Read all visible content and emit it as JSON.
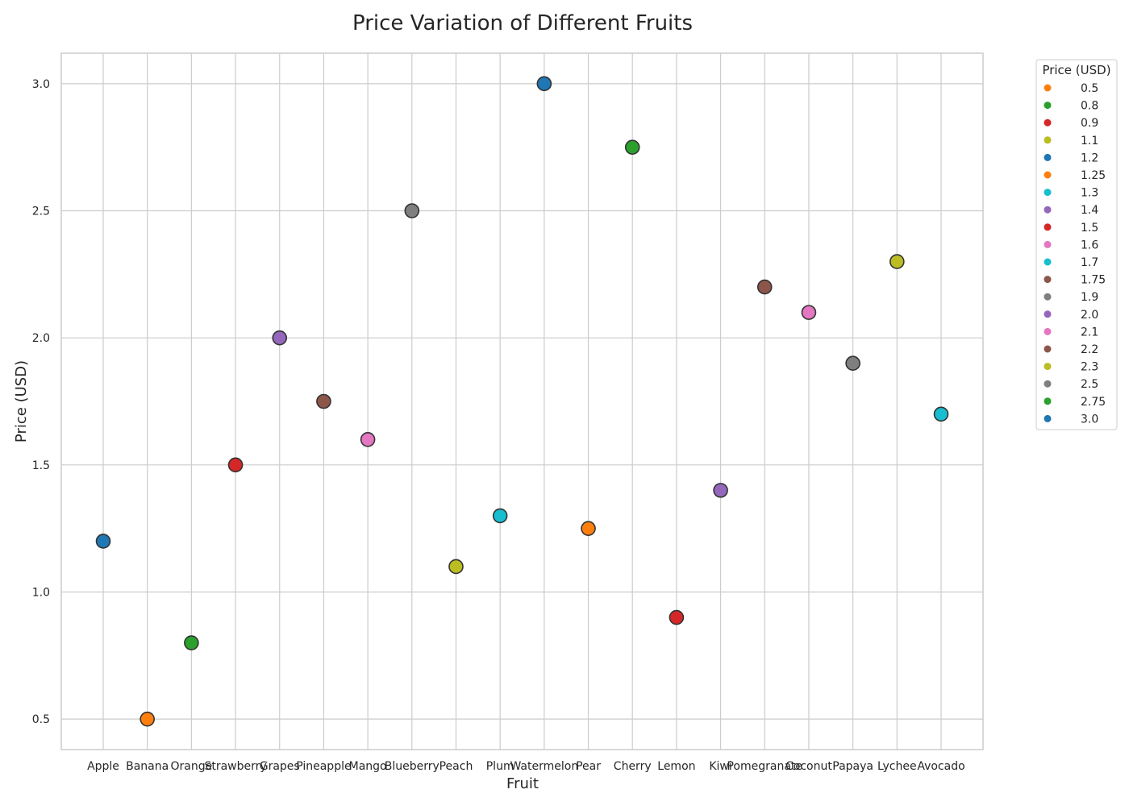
{
  "chart_data": {
    "type": "scatter",
    "title": "Price Variation of Different Fruits",
    "xlabel": "Fruit",
    "ylabel": "Price (USD)",
    "categories": [
      "Apple",
      "Banana",
      "Orange",
      "Strawberry",
      "Grapes",
      "Pineapple",
      "Mango",
      "Blueberry",
      "Peach",
      "Plum",
      "Watermelon",
      "Pear",
      "Cherry",
      "Lemon",
      "Kiwi",
      "Pomegranate",
      "Coconut",
      "Papaya",
      "Lychee",
      "Avocado"
    ],
    "values": [
      1.2,
      0.5,
      0.8,
      1.5,
      2.0,
      1.75,
      1.6,
      2.5,
      1.1,
      1.3,
      3.0,
      1.25,
      2.75,
      0.9,
      1.4,
      2.2,
      2.1,
      1.9,
      2.3,
      1.7
    ],
    "y_ticks": [
      0.5,
      1.0,
      1.5,
      2.0,
      2.5,
      3.0
    ],
    "y_tick_labels": [
      "0.5",
      "1.0",
      "1.5",
      "2.0",
      "2.5",
      "3.0"
    ],
    "ylim": [
      0.38,
      3.12
    ],
    "grid": true,
    "legend": {
      "title": "Price (USD)",
      "placement": "outside-right",
      "entries": [
        {
          "label": "0.5",
          "color": "#ff7f0e"
        },
        {
          "label": "0.8",
          "color": "#2ca02c"
        },
        {
          "label": "0.9",
          "color": "#d62728"
        },
        {
          "label": "1.1",
          "color": "#bcbd22"
        },
        {
          "label": "1.2",
          "color": "#1f77b4"
        },
        {
          "label": "1.25",
          "color": "#ff7f0e"
        },
        {
          "label": "1.3",
          "color": "#17becf"
        },
        {
          "label": "1.4",
          "color": "#9467bd"
        },
        {
          "label": "1.5",
          "color": "#d62728"
        },
        {
          "label": "1.6",
          "color": "#e377c2"
        },
        {
          "label": "1.7",
          "color": "#17becf"
        },
        {
          "label": "1.75",
          "color": "#8c564b"
        },
        {
          "label": "1.9",
          "color": "#7f7f7f"
        },
        {
          "label": "2.0",
          "color": "#9467bd"
        },
        {
          "label": "2.1",
          "color": "#e377c2"
        },
        {
          "label": "2.2",
          "color": "#8c564b"
        },
        {
          "label": "2.3",
          "color": "#bcbd22"
        },
        {
          "label": "2.5",
          "color": "#7f7f7f"
        },
        {
          "label": "2.75",
          "color": "#2ca02c"
        },
        {
          "label": "3.0",
          "color": "#1f77b4"
        }
      ]
    }
  }
}
